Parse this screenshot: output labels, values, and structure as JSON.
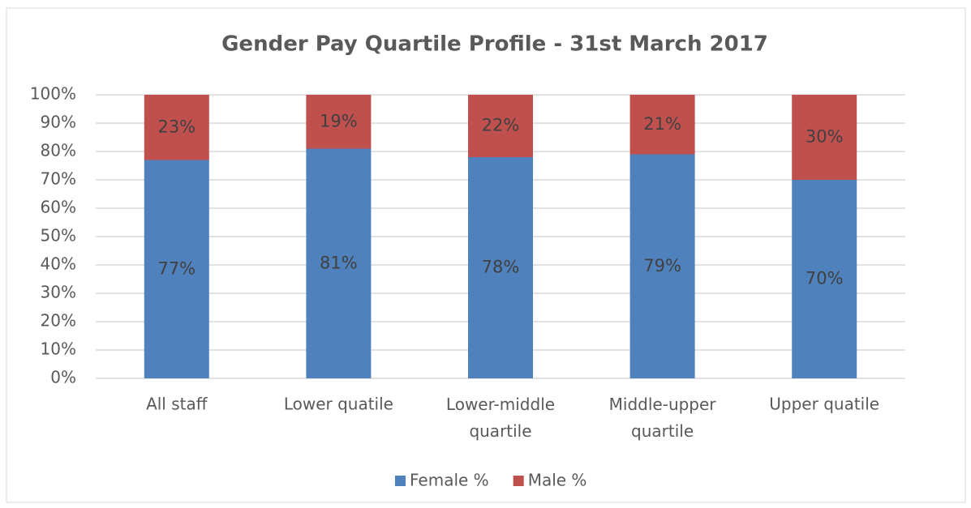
{
  "chart_data": {
    "type": "stacked_bar",
    "title": "Gender Pay Quartile Profile - 31st March 2017",
    "categories": [
      "All staff",
      "Lower quatile",
      "Lower-middle quartile",
      "Middle-upper quartile",
      "Upper quatile"
    ],
    "series": [
      {
        "name": "Female %",
        "color": "#4f81bd",
        "values": [
          77,
          81,
          78,
          79,
          70
        ],
        "value_labels": [
          "77%",
          "81%",
          "78%",
          "79%",
          "70%"
        ]
      },
      {
        "name": "Male %",
        "color": "#c0504d",
        "values": [
          23,
          19,
          22,
          21,
          30
        ],
        "value_labels": [
          "23%",
          "19%",
          "22%",
          "21%",
          "30%"
        ]
      }
    ],
    "ylim": [
      0,
      100
    ],
    "yticks": [
      {
        "value": 0,
        "label": "0%"
      },
      {
        "value": 10,
        "label": "10%"
      },
      {
        "value": 20,
        "label": "20%"
      },
      {
        "value": 30,
        "label": "30%"
      },
      {
        "value": 40,
        "label": "40%"
      },
      {
        "value": 50,
        "label": "50%"
      },
      {
        "value": 60,
        "label": "60%"
      },
      {
        "value": 70,
        "label": "70%"
      },
      {
        "value": 80,
        "label": "80%"
      },
      {
        "value": 90,
        "label": "90%"
      },
      {
        "value": 100,
        "label": "100%"
      }
    ],
    "grid": true,
    "legend": "bottom"
  }
}
